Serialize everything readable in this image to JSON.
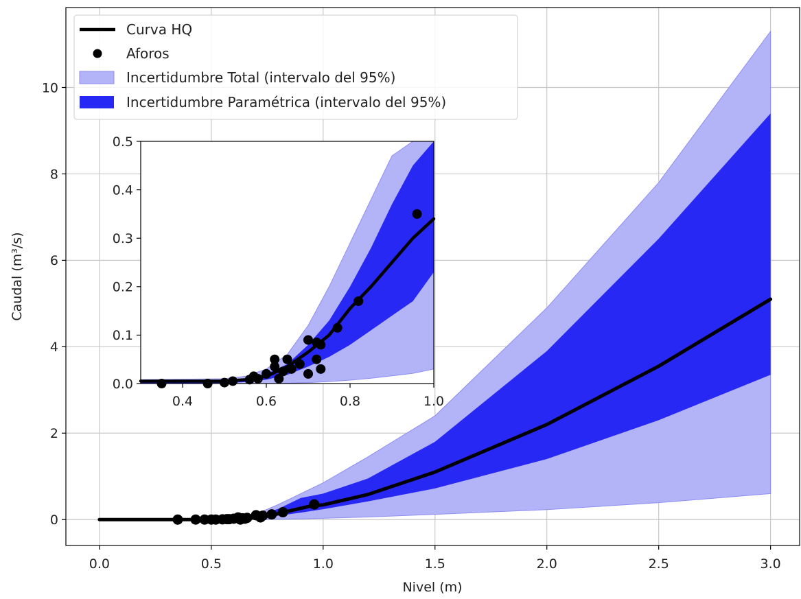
{
  "chart_data": [
    {
      "type": "area",
      "title": "",
      "xlabel": "Nivel (m)",
      "ylabel": "Caudal (m³/s)",
      "xlim": [
        -0.15,
        3.13
      ],
      "ylim": [
        -0.6,
        11.85
      ],
      "xticks": [
        0.0,
        0.5,
        1.0,
        1.5,
        2.0,
        2.5,
        3.0
      ],
      "xtick_labels": [
        "0.0",
        "0.5",
        "1.0",
        "1.5",
        "2.0",
        "2.5",
        "3.0"
      ],
      "yticks": [
        0,
        2,
        4,
        6,
        8,
        10
      ],
      "ytick_labels": [
        "0",
        "2",
        "4",
        "6",
        "8",
        "10"
      ],
      "grid": true,
      "legend_position": "top-left",
      "legend": [
        {
          "label": "Curva HQ",
          "kind": "line",
          "color": "#000000"
        },
        {
          "label": "Aforos",
          "kind": "marker",
          "color": "#000000"
        },
        {
          "label": "Incertidumbre Total (intervalo del 95%)",
          "kind": "patch",
          "color": "#b3b3f7"
        },
        {
          "label": "Incertidumbre Paramétrica (intervalo del 95%)",
          "kind": "patch",
          "color": "#2828f5"
        }
      ],
      "series": [
        {
          "name": "Incertidumbre Total (intervalo del 95%)",
          "kind": "band",
          "color": "#b3b3f7",
          "x": [
            0.0,
            0.5,
            0.6,
            0.7,
            0.8,
            0.9,
            1.0,
            1.2,
            1.5,
            2.0,
            2.5,
            3.0
          ],
          "lower": [
            0.0,
            0.0,
            0.0,
            0.003,
            0.008,
            0.018,
            0.03,
            0.06,
            0.12,
            0.23,
            0.39,
            0.6
          ],
          "upper": [
            0.0,
            0.01,
            0.03,
            0.13,
            0.35,
            0.6,
            0.85,
            1.45,
            2.4,
            4.9,
            7.8,
            11.3
          ]
        },
        {
          "name": "Incertidumbre Paramétrica (intervalo del 95%)",
          "kind": "band",
          "color": "#2828f5",
          "x": [
            0.0,
            0.5,
            0.6,
            0.7,
            0.8,
            0.9,
            1.0,
            1.2,
            1.5,
            2.0,
            2.5,
            3.0
          ],
          "lower": [
            0.0,
            0.0,
            0.005,
            0.03,
            0.09,
            0.16,
            0.24,
            0.42,
            0.72,
            1.4,
            2.3,
            3.35
          ],
          "upper": [
            0.0,
            0.003,
            0.02,
            0.08,
            0.25,
            0.5,
            0.6,
            0.95,
            1.8,
            3.9,
            6.5,
            9.4
          ]
        },
        {
          "name": "Curva HQ",
          "kind": "line",
          "color": "#000000",
          "x": [
            0.0,
            0.5,
            0.6,
            0.65,
            0.7,
            0.75,
            0.8,
            0.85,
            0.9,
            0.95,
            1.0,
            1.2,
            1.5,
            2.0,
            2.5,
            3.0
          ],
          "y": [
            0.0,
            0.0,
            0.006,
            0.02,
            0.045,
            0.08,
            0.14,
            0.2,
            0.26,
            0.32,
            0.34,
            0.58,
            1.1,
            2.2,
            3.55,
            5.1
          ]
        },
        {
          "name": "Aforos",
          "kind": "scatter",
          "color": "#000000",
          "x": [
            0.35,
            0.43,
            0.47,
            0.5,
            0.52,
            0.55,
            0.57,
            0.58,
            0.6,
            0.62,
            0.63,
            0.64,
            0.65,
            0.66,
            0.7,
            0.72,
            0.73,
            0.77,
            0.82,
            0.96
          ],
          "y": [
            0.0,
            0.0,
            0.0,
            0.0,
            0.0,
            0.005,
            0.01,
            0.01,
            0.02,
            0.05,
            0.0,
            0.03,
            0.02,
            0.04,
            0.1,
            0.05,
            0.09,
            0.12,
            0.17,
            0.35
          ]
        }
      ]
    },
    {
      "type": "area",
      "title": "",
      "xlabel": "",
      "ylabel": "",
      "xlim": [
        0.3,
        1.0
      ],
      "ylim": [
        0.0,
        0.5
      ],
      "xticks": [
        0.4,
        0.6,
        0.8,
        1.0
      ],
      "xtick_labels": [
        "0.4",
        "0.6",
        "0.8",
        "1.0"
      ],
      "yticks": [
        0.0,
        0.1,
        0.2,
        0.3,
        0.4,
        0.5
      ],
      "ytick_labels": [
        "0.0",
        "0.1",
        "0.2",
        "0.3",
        "0.4",
        "0.5"
      ],
      "grid": false,
      "series": [
        {
          "name": "Incertidumbre Total (intervalo del 95%)",
          "kind": "band",
          "color": "#b3b3f7",
          "x": [
            0.3,
            0.5,
            0.55,
            0.6,
            0.65,
            0.7,
            0.75,
            0.8,
            0.85,
            0.9,
            0.95,
            1.0
          ],
          "lower": [
            0.0,
            0.0,
            0.0,
            0.0,
            0.001,
            0.002,
            0.004,
            0.007,
            0.011,
            0.016,
            0.021,
            0.03
          ],
          "upper": [
            0.008,
            0.01,
            0.015,
            0.03,
            0.06,
            0.12,
            0.2,
            0.29,
            0.38,
            0.47,
            0.52,
            0.55
          ]
        },
        {
          "name": "Incertidumbre Paramétrica (intervalo del 95%)",
          "kind": "band",
          "color": "#2828f5",
          "x": [
            0.3,
            0.5,
            0.55,
            0.6,
            0.65,
            0.7,
            0.75,
            0.8,
            0.85,
            0.9,
            0.95,
            1.0
          ],
          "lower": [
            0.0,
            0.001,
            0.003,
            0.008,
            0.018,
            0.035,
            0.055,
            0.08,
            0.11,
            0.14,
            0.17,
            0.23
          ],
          "upper": [
            0.005,
            0.006,
            0.01,
            0.02,
            0.04,
            0.08,
            0.13,
            0.2,
            0.28,
            0.37,
            0.45,
            0.5
          ]
        },
        {
          "name": "Curva HQ",
          "kind": "line",
          "color": "#000000",
          "x": [
            0.3,
            0.5,
            0.55,
            0.6,
            0.65,
            0.7,
            0.75,
            0.8,
            0.85,
            0.9,
            0.95,
            1.0
          ],
          "y": [
            0.005,
            0.005,
            0.008,
            0.015,
            0.035,
            0.065,
            0.1,
            0.155,
            0.2,
            0.25,
            0.3,
            0.34
          ]
        },
        {
          "name": "Aforos",
          "kind": "scatter",
          "color": "#000000",
          "x": [
            0.35,
            0.46,
            0.5,
            0.52,
            0.56,
            0.57,
            0.58,
            0.6,
            0.62,
            0.62,
            0.63,
            0.64,
            0.65,
            0.66,
            0.68,
            0.7,
            0.7,
            0.72,
            0.72,
            0.73,
            0.73,
            0.77,
            0.82,
            0.96
          ],
          "y": [
            0.0,
            0.0,
            0.002,
            0.005,
            0.008,
            0.015,
            0.01,
            0.02,
            0.05,
            0.035,
            0.01,
            0.025,
            0.05,
            0.03,
            0.04,
            0.09,
            0.02,
            0.085,
            0.05,
            0.03,
            0.08,
            0.115,
            0.17,
            0.35
          ]
        }
      ]
    }
  ]
}
